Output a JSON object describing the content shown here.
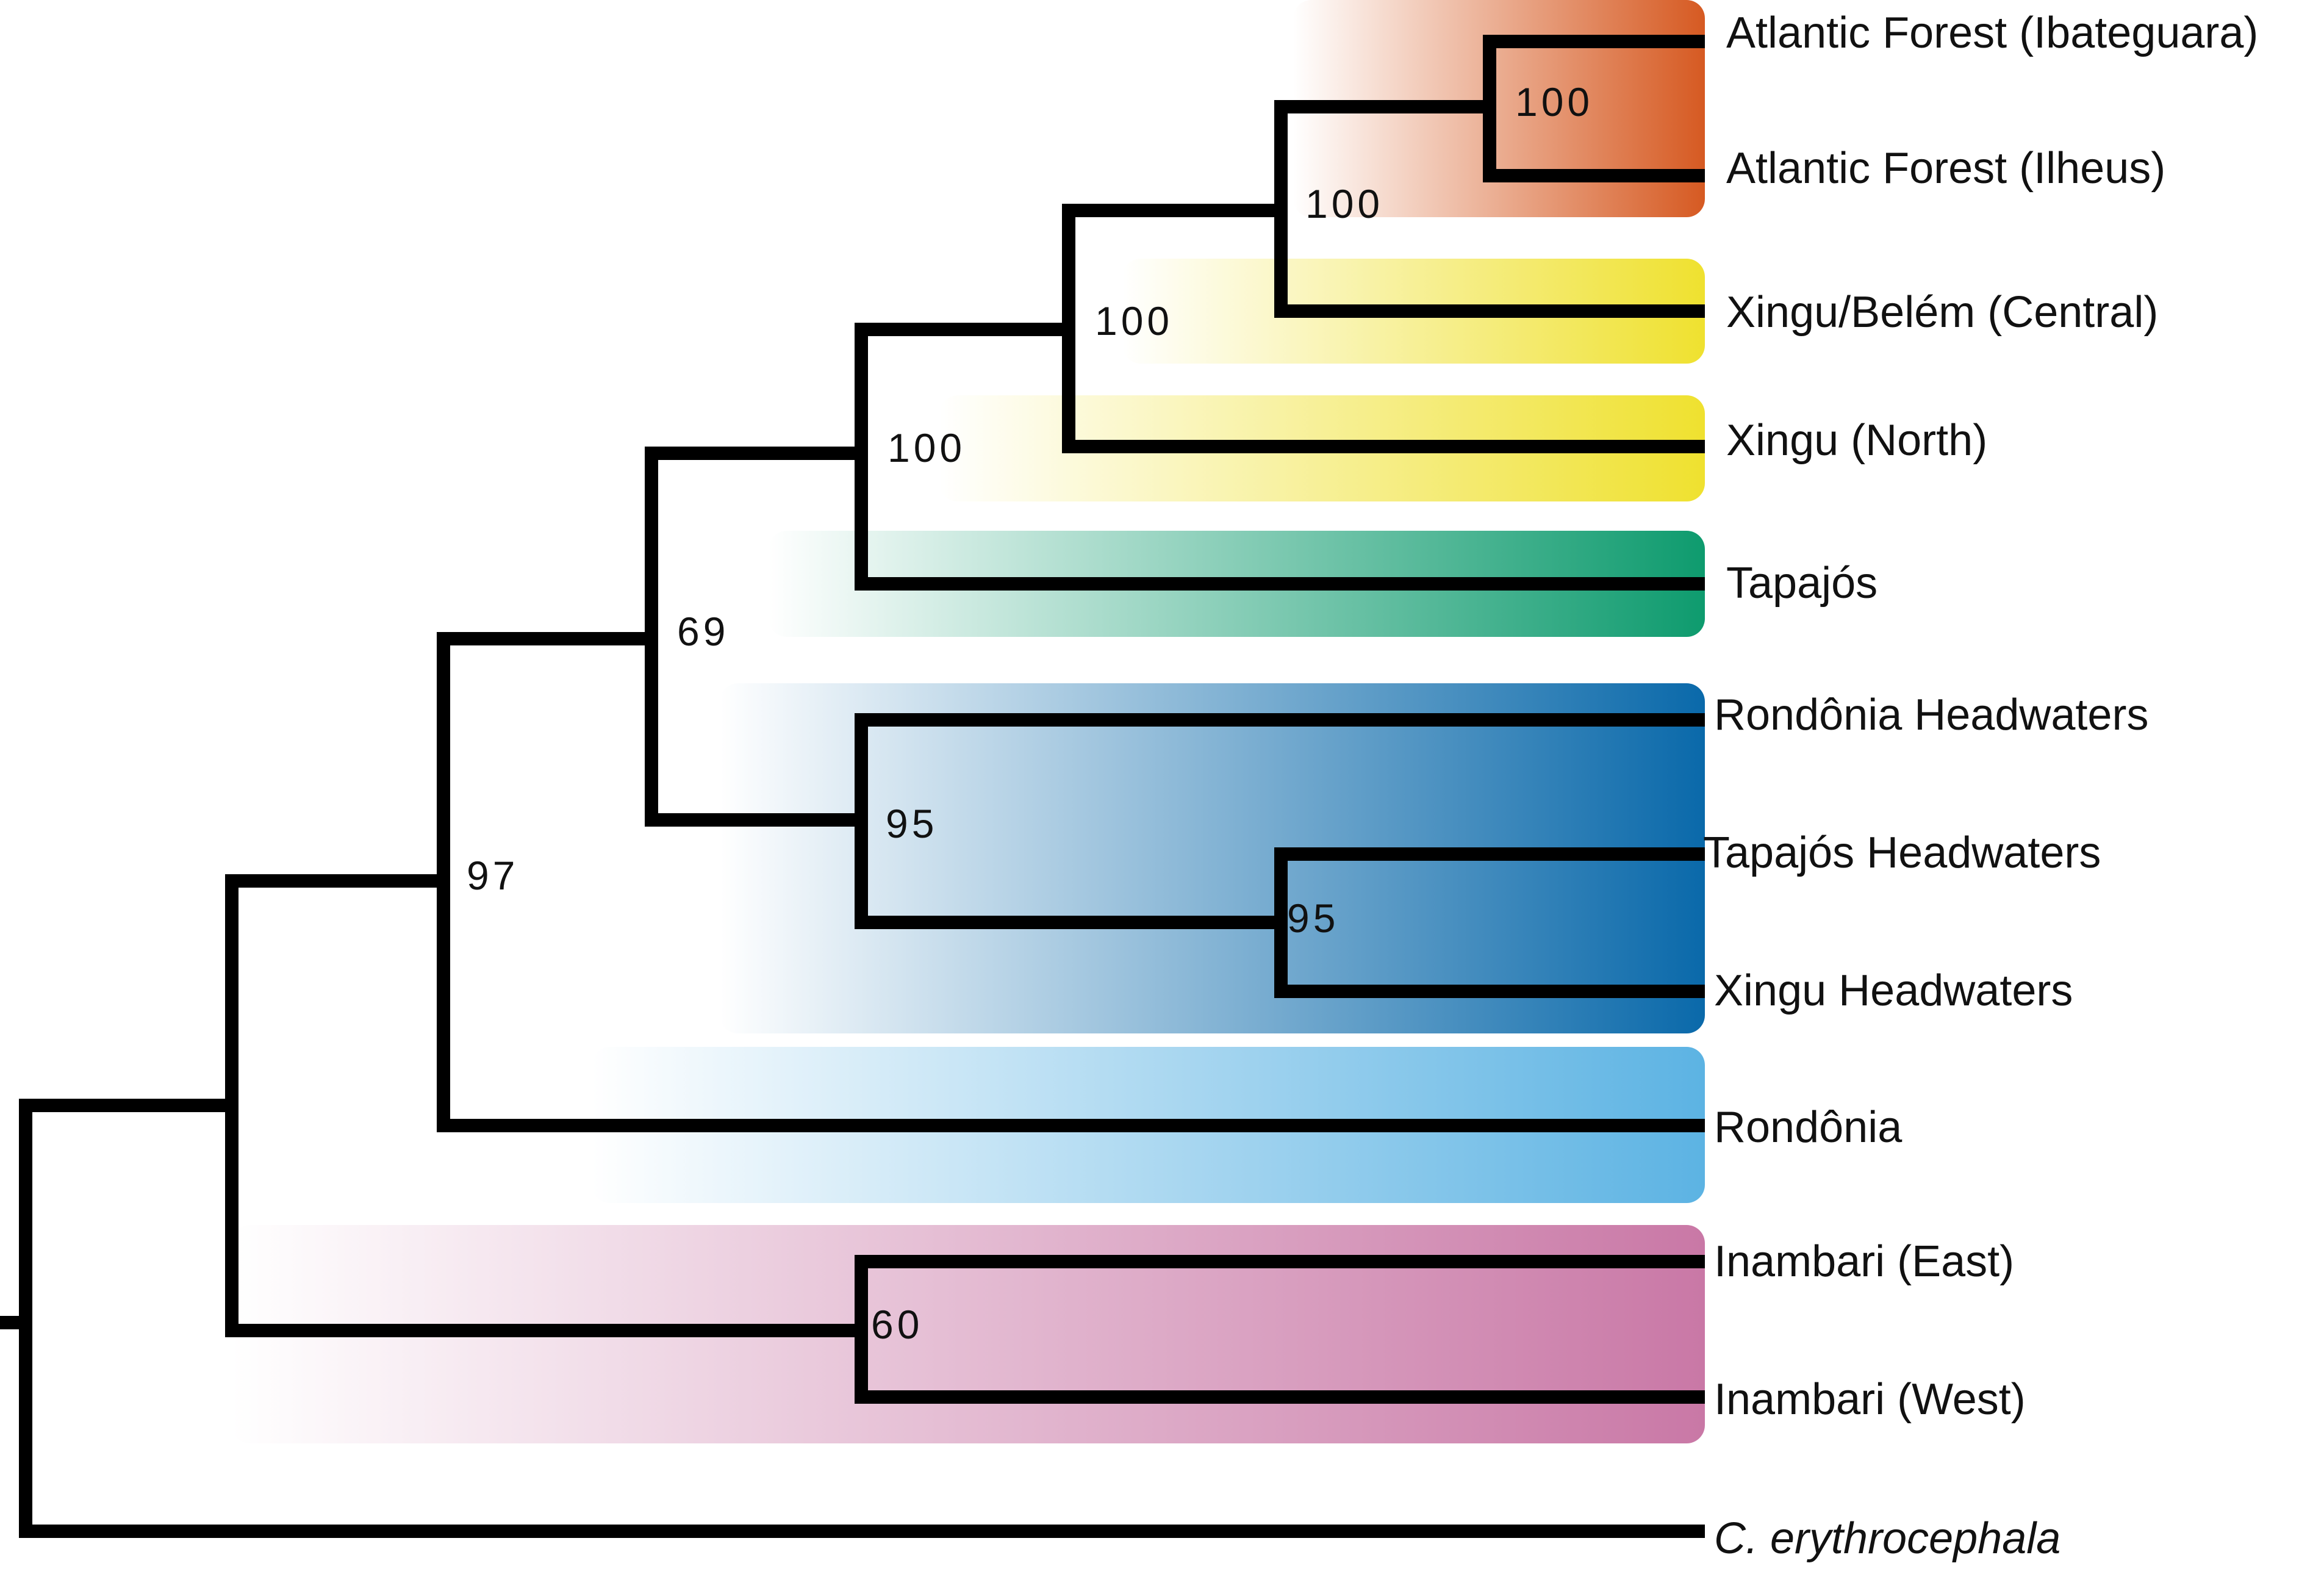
{
  "tree": {
    "tips": [
      {
        "key": "af_ibateguara",
        "label": "Atlantic Forest (Ibateguara)"
      },
      {
        "key": "af_ilheus",
        "label": "Atlantic Forest (Ilheus)"
      },
      {
        "key": "xingu_belem",
        "label": "Xingu/Belém (Central)"
      },
      {
        "key": "xingu_north",
        "label": "Xingu (North)"
      },
      {
        "key": "tapajos",
        "label": "Tapajós"
      },
      {
        "key": "rondonia_hw",
        "label": "Rondônia Headwaters"
      },
      {
        "key": "tapajos_hw",
        "label": "Tapajós Headwaters"
      },
      {
        "key": "xingu_hw",
        "label": "Xingu Headwaters"
      },
      {
        "key": "rondonia",
        "label": "Rondônia"
      },
      {
        "key": "inambari_east",
        "label": "Inambari (East)"
      },
      {
        "key": "inambari_west",
        "label": "Inambari (West)"
      },
      {
        "key": "outgroup",
        "label": "C. erythrocephala"
      }
    ],
    "support_values": [
      {
        "node": "atlantic_forest",
        "value": "100"
      },
      {
        "node": "atlantic_xingu_central",
        "value": "100"
      },
      {
        "node": "eastern_clade",
        "value": "100"
      },
      {
        "node": "eastern_tapajos",
        "value": "100"
      },
      {
        "node": "clade_69",
        "value": "69"
      },
      {
        "node": "headwaters",
        "value": "95"
      },
      {
        "node": "tapajos_xingu_headwaters",
        "value": "95"
      },
      {
        "node": "clade_97",
        "value": "97"
      },
      {
        "node": "inambari",
        "value": "60"
      }
    ],
    "clade_colors": {
      "atlantic_forest": "#d65a22",
      "xingu": "#efe12f",
      "tapajos": "#0e9b6e",
      "headwaters": "#0a69aa",
      "rondonia": "#5cb3e3",
      "inambari": "#c978a6"
    }
  }
}
